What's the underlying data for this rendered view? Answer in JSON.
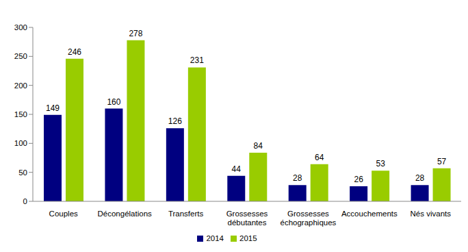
{
  "chart_data": {
    "type": "bar",
    "categories": [
      "Couples",
      "Décongélations",
      "Transferts",
      "Grossesses débutantes",
      "Grossesses échographiques",
      "Accouchements",
      "Nés vivants"
    ],
    "series": [
      {
        "name": "2014",
        "color": "#000080",
        "values": [
          149,
          160,
          126,
          44,
          28,
          26,
          28
        ]
      },
      {
        "name": "2015",
        "color": "#99CC00",
        "values": [
          246,
          278,
          231,
          84,
          64,
          53,
          57
        ]
      }
    ],
    "ylim": [
      0,
      300
    ],
    "yticks": [
      0,
      50,
      100,
      150,
      200,
      250,
      300
    ],
    "grid": false,
    "legend": "bottom",
    "data_labels": true
  }
}
